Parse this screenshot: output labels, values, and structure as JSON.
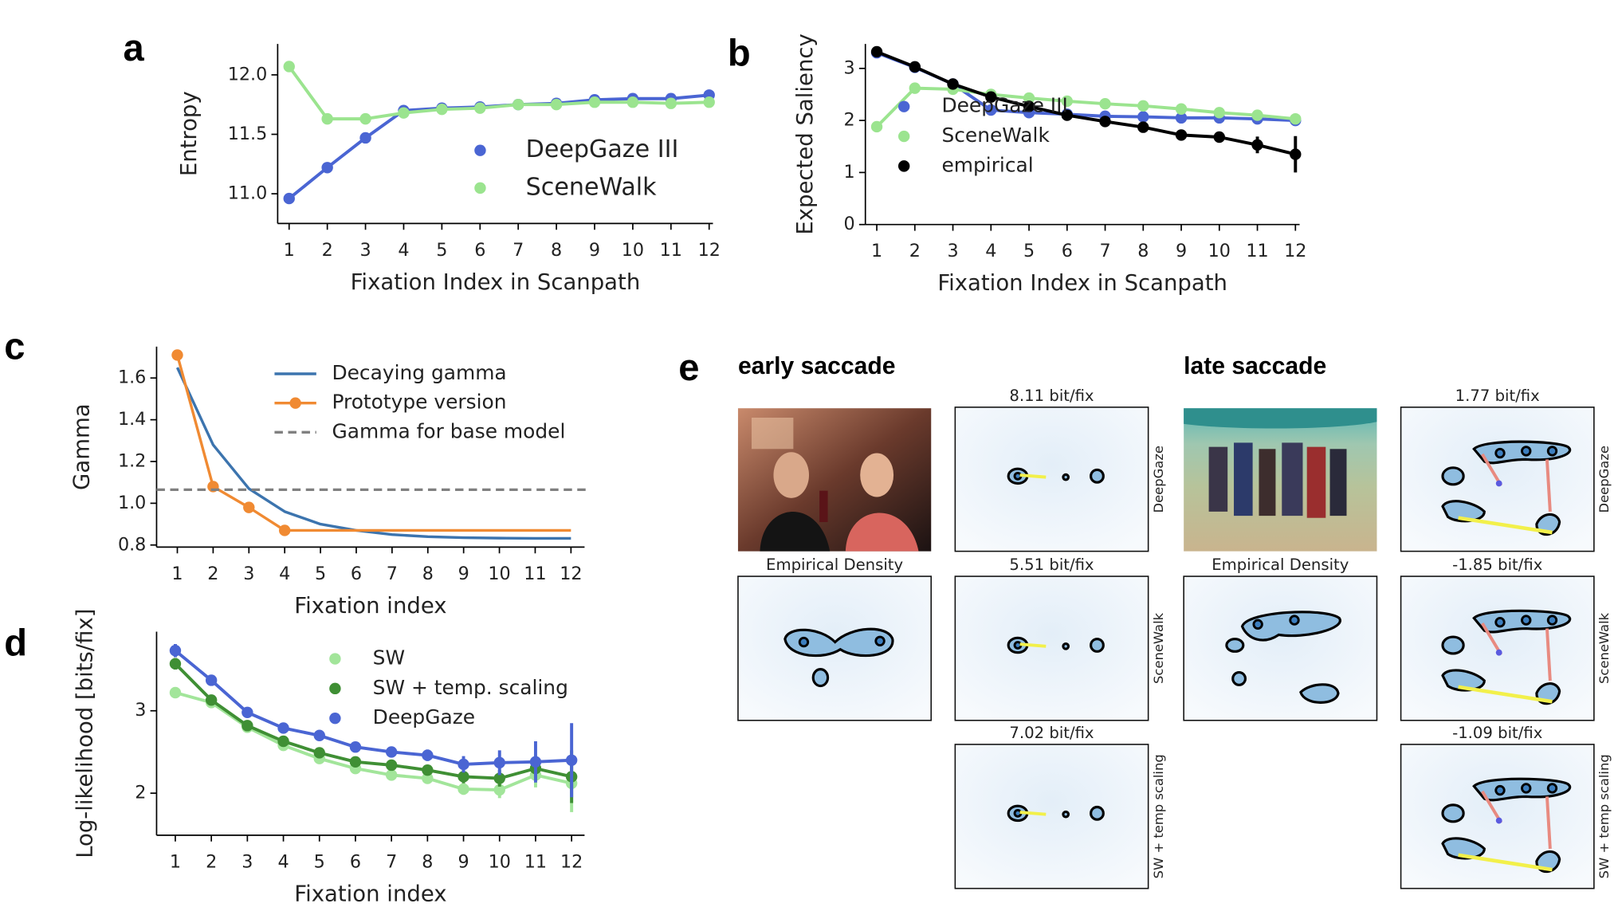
{
  "chart_data": [
    {
      "label": "a",
      "type": "line",
      "x": [
        1,
        2,
        3,
        4,
        5,
        6,
        7,
        8,
        9,
        10,
        11,
        12
      ],
      "xlim": [
        0.7,
        12.1
      ],
      "xticks": [
        1,
        2,
        3,
        4,
        5,
        6,
        7,
        8,
        9,
        10,
        11,
        12
      ],
      "ylim": [
        10.75,
        12.26
      ],
      "yticks": [
        {
          "value": 11,
          "label": "11.0"
        },
        11.5,
        {
          "value": 12,
          "label": "12.0"
        }
      ],
      "xlabel": "Fixation Index in Scanpath",
      "ylabel": "Entropy",
      "legend": "lower right",
      "series": [
        {
          "name": "DeepGaze III",
          "color": "#4a65d3",
          "style": "markers",
          "values": [
            10.96,
            11.22,
            11.47,
            11.7,
            11.72,
            11.73,
            11.75,
            11.76,
            11.79,
            11.8,
            11.8,
            11.83
          ]
        },
        {
          "name": "SceneWalk",
          "color": "#9be48f",
          "style": "markers",
          "values": [
            12.07,
            11.63,
            11.63,
            11.68,
            11.71,
            11.72,
            11.75,
            11.75,
            11.77,
            11.77,
            11.76,
            11.77
          ]
        }
      ]
    },
    {
      "label": "b",
      "type": "line",
      "x": [
        1,
        2,
        3,
        4,
        5,
        6,
        7,
        8,
        9,
        10,
        11,
        12
      ],
      "xlim": [
        0.7,
        12.11
      ],
      "xticks": [
        1,
        2,
        3,
        4,
        5,
        6,
        7,
        8,
        9,
        10,
        11,
        12
      ],
      "ylim": [
        0,
        3.47
      ],
      "yticks": [
        0,
        1,
        2,
        3
      ],
      "xlabel": "Fixation Index in Scanpath",
      "ylabel": "Expected Saliency",
      "legend": "center left",
      "series": [
        {
          "name": "DeepGaze III",
          "color": "#4a65d3",
          "style": "markers",
          "values": [
            3.3,
            3.02,
            2.7,
            2.2,
            2.15,
            2.12,
            2.08,
            2.07,
            2.05,
            2.05,
            2.03,
            2.0
          ]
        },
        {
          "name": "SceneWalk",
          "color": "#9be48f",
          "style": "markers",
          "values": [
            1.88,
            2.62,
            2.6,
            2.5,
            2.43,
            2.37,
            2.32,
            2.28,
            2.22,
            2.15,
            2.1,
            2.03
          ]
        },
        {
          "name": "empirical",
          "color": "#000000",
          "style": "markers",
          "values": [
            3.32,
            3.03,
            2.7,
            2.45,
            2.27,
            2.1,
            1.98,
            1.87,
            1.72,
            1.68,
            1.53,
            1.35
          ],
          "errors": [
            0.04,
            0.04,
            0.05,
            0.05,
            0.05,
            0.05,
            0.06,
            0.06,
            0.07,
            0.1,
            0.16,
            0.35
          ]
        }
      ]
    },
    {
      "label": "c",
      "type": "line",
      "x": [
        1,
        2,
        3,
        4,
        5,
        6,
        7,
        8,
        9,
        10,
        11,
        12
      ],
      "xlim": [
        0.42,
        12.38
      ],
      "xticks": [
        1,
        2,
        3,
        4,
        5,
        6,
        7,
        8,
        9,
        10,
        11,
        12
      ],
      "ylim": [
        0.79,
        1.75
      ],
      "yticks": [
        0.8,
        {
          "value": 1,
          "label": "1.0"
        },
        1.2,
        1.4,
        1.6
      ],
      "xlabel": "Fixation index",
      "ylabel": "Gamma",
      "legend": "upper right",
      "series": [
        {
          "name": "Decaying gamma",
          "color": "#3c74ae",
          "style": "line",
          "values": [
            1.65,
            1.28,
            1.07,
            0.96,
            0.9,
            0.87,
            0.85,
            0.84,
            0.835,
            0.833,
            0.832,
            0.832
          ]
        },
        {
          "name": "Prototype version",
          "color": "#f08a32",
          "style": "line",
          "marker_indices": [
            0,
            1,
            2,
            3
          ],
          "values": [
            1.71,
            1.08,
            0.98,
            0.87,
            0.87,
            0.87,
            0.87,
            0.87,
            0.87,
            0.87,
            0.87,
            0.87
          ]
        },
        {
          "name": "Gamma for base model",
          "color": "#808080",
          "style": "dashed",
          "value": 1.065
        }
      ]
    },
    {
      "label": "d",
      "type": "line",
      "x": [
        1,
        2,
        3,
        4,
        5,
        6,
        7,
        8,
        9,
        10,
        11,
        12
      ],
      "xlim": [
        0.48,
        12.36
      ],
      "xticks": [
        1,
        2,
        3,
        4,
        5,
        6,
        7,
        8,
        9,
        10,
        11,
        12
      ],
      "ylim": [
        1.49,
        3.96
      ],
      "yticks": [
        2,
        3
      ],
      "xlabel": "Fixation index",
      "ylabel": "Log-likelihood [bits/fix]",
      "legend": "upper right",
      "series": [
        {
          "name": "SW",
          "color": "#a2e59a",
          "style": "markers",
          "values": [
            3.22,
            3.1,
            2.8,
            2.58,
            2.42,
            2.3,
            2.22,
            2.18,
            2.05,
            2.04,
            2.22,
            2.12
          ],
          "errors": [
            0.05,
            0.05,
            0.04,
            0.04,
            0.04,
            0.05,
            0.05,
            0.06,
            0.07,
            0.1,
            0.15,
            0.35
          ]
        },
        {
          "name": "SW + temp. scaling",
          "color": "#3f8f34",
          "style": "markers",
          "values": [
            3.57,
            3.13,
            2.82,
            2.63,
            2.49,
            2.38,
            2.34,
            2.28,
            2.2,
            2.18,
            2.3,
            2.2
          ],
          "errors": [
            0.07,
            0.05,
            0.04,
            0.04,
            0.04,
            0.05,
            0.05,
            0.06,
            0.08,
            0.1,
            0.15,
            0.32
          ]
        },
        {
          "name": "DeepGaze",
          "color": "#4a65d3",
          "style": "markers",
          "values": [
            3.73,
            3.37,
            2.98,
            2.79,
            2.7,
            2.56,
            2.5,
            2.46,
            2.35,
            2.37,
            2.38,
            2.4
          ],
          "errors": [
            0.08,
            0.06,
            0.05,
            0.05,
            0.05,
            0.06,
            0.06,
            0.07,
            0.1,
            0.15,
            0.25,
            0.45
          ]
        }
      ]
    }
  ],
  "panel_e": {
    "label": "e",
    "columns": [
      {
        "title": "early saccade",
        "image_caption": "Empirical Density",
        "models": [
          {
            "score": "8.11 bit/fix",
            "model": "DeepGaze"
          },
          {
            "score": "5.51 bit/fix",
            "model": "SceneWalk"
          },
          {
            "score": "7.02 bit/fix",
            "model": "SW + temp scaling"
          }
        ]
      },
      {
        "title": "late saccade",
        "image_caption": "Empirical Density",
        "models": [
          {
            "score": "1.77 bit/fix",
            "model": "DeepGaze"
          },
          {
            "score": "-1.85 bit/fix",
            "model": "SceneWalk"
          },
          {
            "score": "-1.09 bit/fix",
            "model": "SW + temp scaling"
          }
        ]
      }
    ]
  }
}
